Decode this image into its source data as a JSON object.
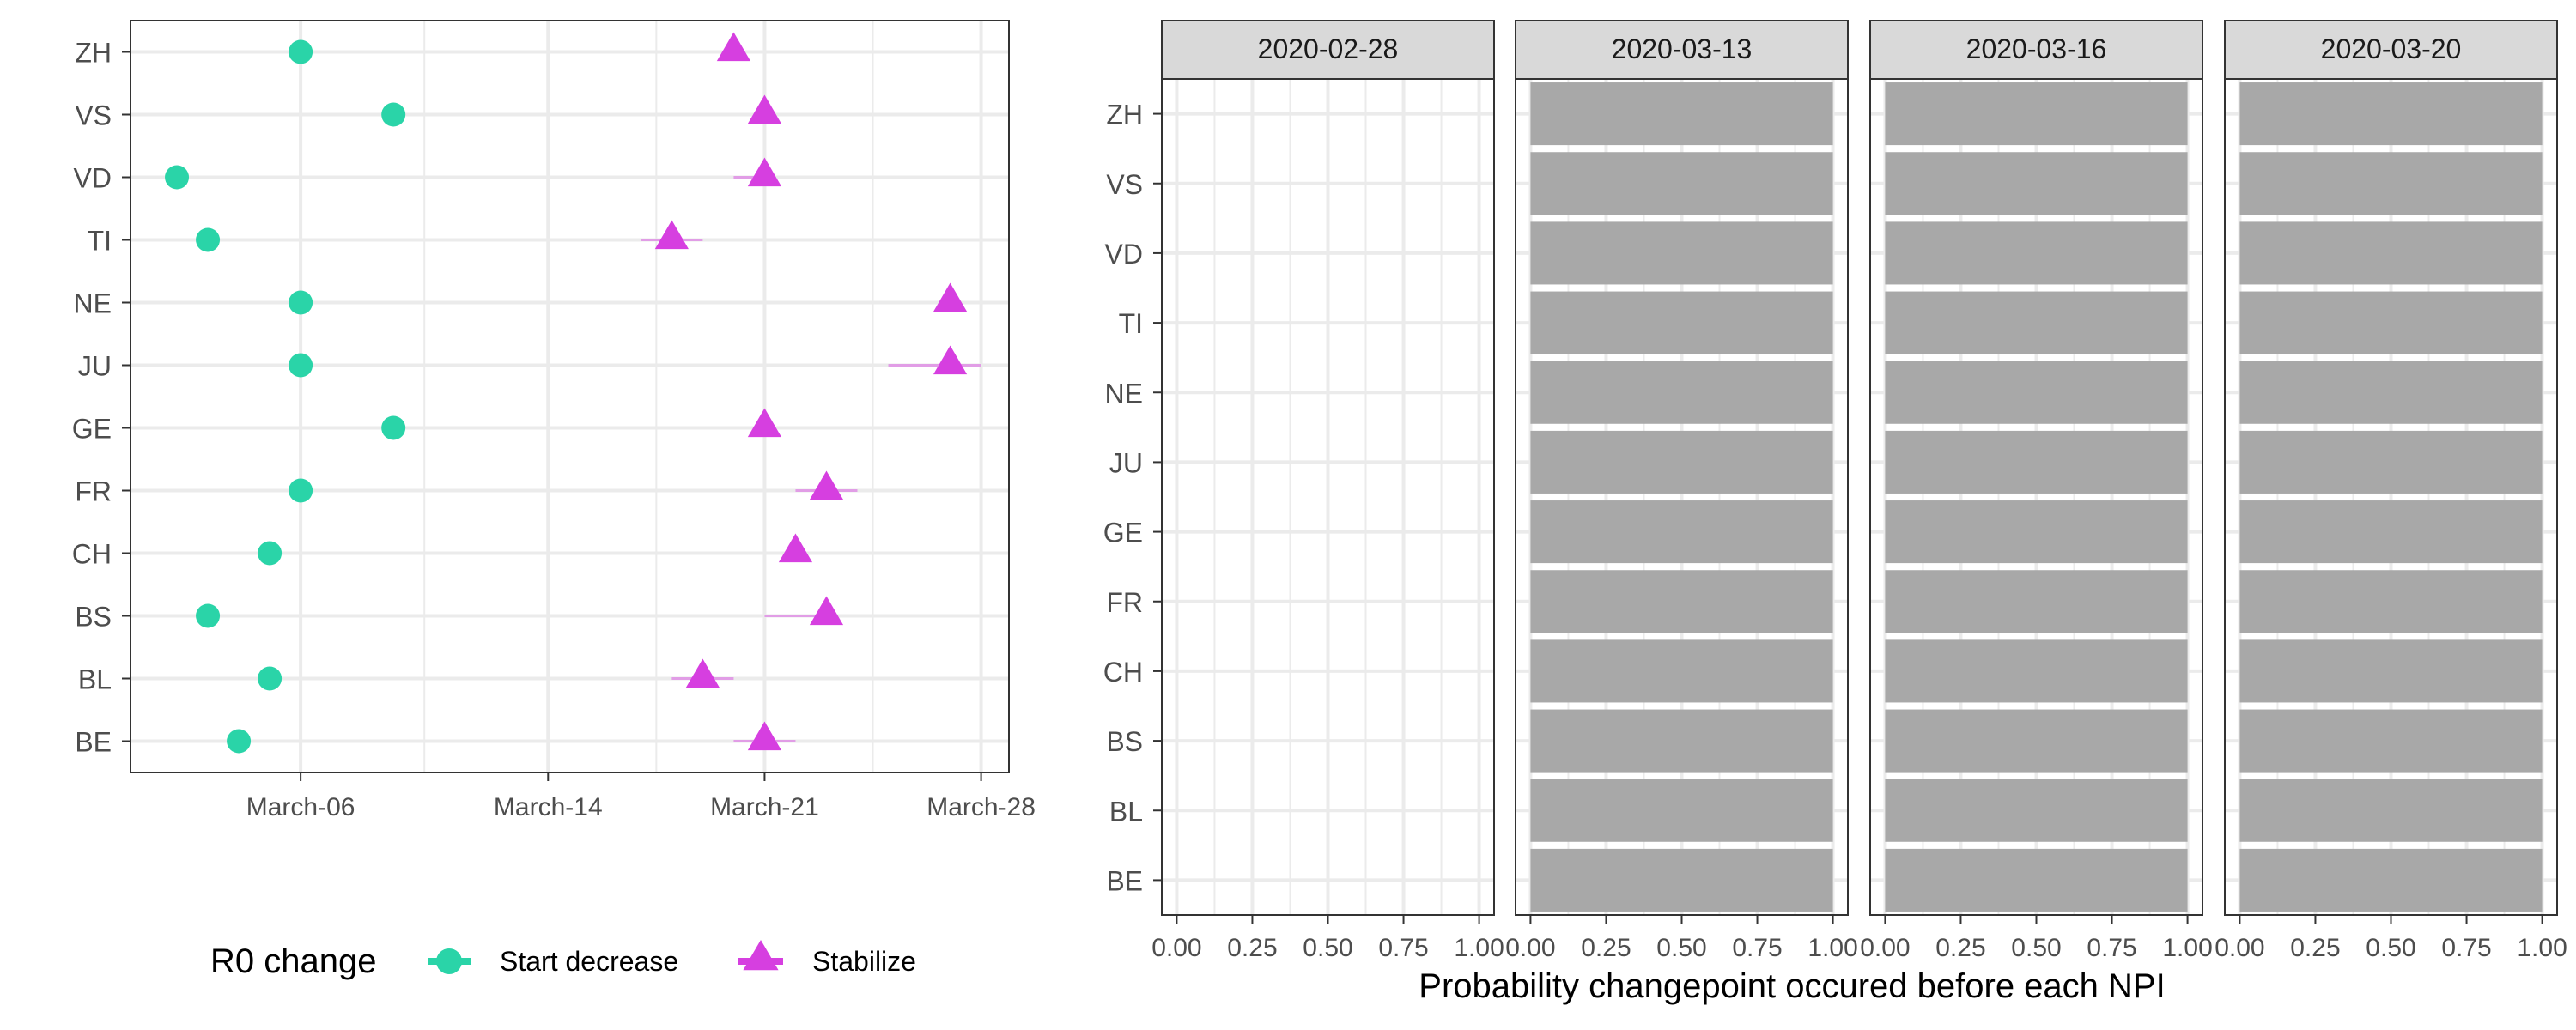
{
  "colors": {
    "start": "#2ad4a8",
    "stabilize": "#d63fe0",
    "bar": "#a8a8a8",
    "strip": "#d9d9d9",
    "grid": "#ebebeb",
    "text": "#4d4d4d",
    "axis_text": "#333333"
  },
  "chart_data": [
    {
      "type": "scatter",
      "title": "",
      "xlabel": "",
      "ylabel": "",
      "y_categories": [
        "ZH",
        "VS",
        "VD",
        "TI",
        "NE",
        "JU",
        "GE",
        "FR",
        "CH",
        "BS",
        "BL",
        "BE"
      ],
      "x_ticks": [
        "March-06",
        "March-14",
        "March-21",
        "March-28"
      ],
      "xlim": [
        "2020-03-01",
        "2020-03-28"
      ],
      "grid": true,
      "legend": {
        "title": "R0 change",
        "position": "bottom",
        "items": [
          {
            "name": "Start decrease",
            "shape": "circle",
            "color": "#2ad4a8"
          },
          {
            "name": "Stabilize",
            "shape": "triangle",
            "color": "#d63fe0"
          }
        ]
      },
      "series": [
        {
          "name": "Start decrease",
          "points": [
            {
              "y": "ZH",
              "x": "2020-03-06"
            },
            {
              "y": "VS",
              "x": "2020-03-09"
            },
            {
              "y": "VD",
              "x": "2020-03-02"
            },
            {
              "y": "TI",
              "x": "2020-03-03"
            },
            {
              "y": "NE",
              "x": "2020-03-06"
            },
            {
              "y": "JU",
              "x": "2020-03-06"
            },
            {
              "y": "GE",
              "x": "2020-03-09"
            },
            {
              "y": "FR",
              "x": "2020-03-06"
            },
            {
              "y": "CH",
              "x": "2020-03-05"
            },
            {
              "y": "BS",
              "x": "2020-03-03"
            },
            {
              "y": "BL",
              "x": "2020-03-05"
            },
            {
              "y": "BE",
              "x": "2020-03-04"
            }
          ]
        },
        {
          "name": "Stabilize",
          "points": [
            {
              "y": "ZH",
              "x": "2020-03-20",
              "lo": "2020-03-20",
              "hi": "2020-03-20"
            },
            {
              "y": "VS",
              "x": "2020-03-21",
              "lo": "2020-03-21",
              "hi": "2020-03-21"
            },
            {
              "y": "VD",
              "x": "2020-03-21",
              "lo": "2020-03-20",
              "hi": "2020-03-21"
            },
            {
              "y": "TI",
              "x": "2020-03-18",
              "lo": "2020-03-17",
              "hi": "2020-03-19"
            },
            {
              "y": "NE",
              "x": "2020-03-27",
              "lo": "2020-03-27",
              "hi": "2020-03-27"
            },
            {
              "y": "JU",
              "x": "2020-03-27",
              "lo": "2020-03-25",
              "hi": "2020-03-28"
            },
            {
              "y": "GE",
              "x": "2020-03-21",
              "lo": "2020-03-21",
              "hi": "2020-03-21"
            },
            {
              "y": "FR",
              "x": "2020-03-23",
              "lo": "2020-03-22",
              "hi": "2020-03-24"
            },
            {
              "y": "CH",
              "x": "2020-03-22",
              "lo": "2020-03-22",
              "hi": "2020-03-22"
            },
            {
              "y": "BS",
              "x": "2020-03-23",
              "lo": "2020-03-21",
              "hi": "2020-03-23"
            },
            {
              "y": "BL",
              "x": "2020-03-19",
              "lo": "2020-03-18",
              "hi": "2020-03-20"
            },
            {
              "y": "BE",
              "x": "2020-03-21",
              "lo": "2020-03-20",
              "hi": "2020-03-22"
            }
          ]
        }
      ]
    },
    {
      "type": "bar",
      "orientation": "horizontal",
      "xlabel": "Probability changepoint occured before each NPI",
      "ylabel": "",
      "categories": [
        "ZH",
        "VS",
        "VD",
        "TI",
        "NE",
        "JU",
        "GE",
        "FR",
        "CH",
        "BS",
        "BL",
        "BE"
      ],
      "x_ticks": [
        "0.00",
        "0.25",
        "0.50",
        "0.75",
        "1.00"
      ],
      "xlim": [
        0,
        1
      ],
      "grid": true,
      "facets": [
        {
          "label": "2020-02-28",
          "values": [
            0,
            0,
            0,
            0,
            0,
            0,
            0,
            0,
            0,
            0,
            0,
            0
          ]
        },
        {
          "label": "2020-03-13",
          "values": [
            1,
            1,
            1,
            1,
            1,
            1,
            1,
            1,
            1,
            1,
            1,
            1
          ]
        },
        {
          "label": "2020-03-16",
          "values": [
            1,
            1,
            1,
            1,
            1,
            1,
            1,
            1,
            1,
            1,
            1,
            1
          ]
        },
        {
          "label": "2020-03-20",
          "values": [
            1,
            1,
            1,
            1,
            1,
            1,
            1,
            1,
            1,
            1,
            1,
            1
          ]
        }
      ]
    }
  ]
}
